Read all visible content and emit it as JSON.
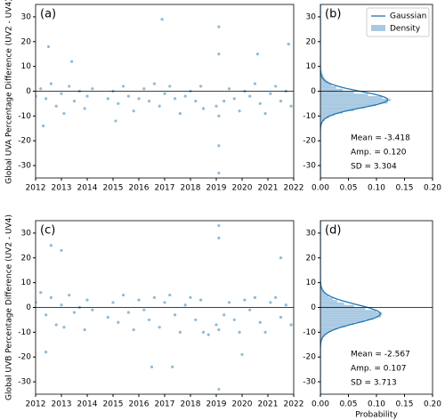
{
  "chart_data": [
    {
      "type": "scatter",
      "label": "(a)",
      "ylabel": "Global UVA Percentage Difference (UV2 - UV4)",
      "color": "#1f77b4",
      "hline": 0,
      "xlim": [
        2012,
        2022
      ],
      "xticks": [
        2012,
        2013,
        2014,
        2015,
        2016,
        2017,
        2018,
        2019,
        2020,
        2021,
        2022
      ],
      "ylim": [
        -35,
        35
      ],
      "yticks": [
        -30,
        -20,
        -10,
        0,
        10,
        20,
        30
      ],
      "x": [
        2012.0,
        2012.2,
        2012.4,
        2012.6,
        2012.8,
        2013.0,
        2013.1,
        2013.3,
        2013.5,
        2013.7,
        2013.9,
        2014.0,
        2014.2,
        2014.8,
        2015.0,
        2015.2,
        2015.4,
        2015.6,
        2015.8,
        2016.0,
        2016.2,
        2016.4,
        2016.6,
        2016.8,
        2017.0,
        2017.2,
        2017.4,
        2017.6,
        2017.8,
        2018.0,
        2018.2,
        2018.4,
        2018.5,
        2019.0,
        2019.1,
        2019.1,
        2019.1,
        2019.1,
        2019.1,
        2019.3,
        2019.5,
        2019.7,
        2019.9,
        2020.1,
        2020.3,
        2020.5,
        2020.7,
        2020.9,
        2021.1,
        2021.3,
        2021.5,
        2021.7,
        2021.9,
        2012.5,
        2016.9,
        2013.4,
        2020.6,
        2021.8,
        2012.3,
        2015.1
      ],
      "y": [
        -2,
        1,
        -3,
        3,
        -6,
        -1,
        -9,
        2,
        -4,
        0,
        -7,
        -2,
        1,
        -3,
        0,
        -5,
        2,
        -2,
        -8,
        -3,
        1,
        -4,
        3,
        -6,
        -1,
        2,
        -3,
        -9,
        -2,
        0,
        -4,
        2,
        -7,
        -6,
        -10,
        26,
        -33,
        -22,
        15,
        -4,
        1,
        -3,
        -8,
        0,
        -2,
        3,
        -5,
        -9,
        -1,
        2,
        -4,
        0,
        -6,
        18,
        29,
        12,
        15,
        19,
        -14,
        -12
      ]
    },
    {
      "type": "histogram",
      "label": "(b)",
      "color": "#a9c9e2",
      "curve_color": "#1f77b4",
      "hline": 0,
      "xlim": [
        0,
        0.2
      ],
      "xticks": [
        {
          "value": 0,
          "label": "0.00"
        },
        {
          "value": 0.05,
          "label": "0.05"
        },
        {
          "value": 0.1,
          "label": "0.10"
        },
        {
          "value": 0.15,
          "label": "0.15"
        },
        {
          "value": 0.2,
          "label": "0.20"
        }
      ],
      "ylim": [
        -35,
        35
      ],
      "yticks": [
        -30,
        -20,
        -10,
        0,
        10,
        20,
        30
      ],
      "bins": [
        -15,
        -14,
        -13,
        -12,
        -11,
        -10,
        -9,
        -8,
        -7,
        -6,
        -5,
        -4,
        -3,
        -2,
        -1,
        0,
        1,
        2,
        3,
        4,
        5,
        6,
        7,
        8,
        9,
        10
      ],
      "values": [
        0.001,
        0.002,
        0.004,
        0.008,
        0.015,
        0.025,
        0.04,
        0.06,
        0.08,
        0.1,
        0.12,
        0.125,
        0.11,
        0.085,
        0.06,
        0.04,
        0.028,
        0.02,
        0.014,
        0.01,
        0.007,
        0.005,
        0.003,
        0.002,
        0.001
      ],
      "gaussian": {
        "mean": {
          "value": -3.418,
          "label": "Mean = -3.418"
        },
        "amp": {
          "value": 0.12,
          "label": "Amp. = 0.120"
        },
        "sd": {
          "value": 3.304,
          "label": "SD = 3.304"
        }
      },
      "curve_name": "Gaussian",
      "bar_name": "Density",
      "legend": "upper right"
    },
    {
      "type": "scatter",
      "label": "(c)",
      "ylabel": "Global UVB Percentage Difference (UV2 - UV4)",
      "color": "#1f77b4",
      "hline": 0,
      "xlim": [
        2012,
        2022
      ],
      "xticks": [
        2012,
        2013,
        2014,
        2015,
        2016,
        2017,
        2018,
        2019,
        2020,
        2021,
        2022
      ],
      "ylim": [
        -35,
        35
      ],
      "yticks": [
        -30,
        -20,
        -10,
        0,
        10,
        20,
        30
      ],
      "x": [
        2012.0,
        2012.2,
        2012.4,
        2012.6,
        2012.8,
        2013.0,
        2013.1,
        2013.3,
        2013.5,
        2013.7,
        2013.9,
        2014.0,
        2014.2,
        2014.8,
        2015.0,
        2015.2,
        2015.4,
        2015.6,
        2015.8,
        2016.0,
        2016.2,
        2016.4,
        2016.6,
        2016.8,
        2017.0,
        2017.2,
        2017.4,
        2017.6,
        2017.8,
        2018.0,
        2018.2,
        2018.4,
        2018.5,
        2019.0,
        2019.1,
        2019.1,
        2019.1,
        2019.1,
        2019.3,
        2019.5,
        2019.7,
        2019.9,
        2020.1,
        2020.3,
        2020.5,
        2020.7,
        2020.9,
        2021.1,
        2021.3,
        2021.5,
        2021.7,
        2021.9,
        2012.6,
        2016.5,
        2013.0,
        2021.5,
        2012.4,
        2020.0,
        2017.3,
        2018.7
      ],
      "y": [
        2,
        6,
        -3,
        4,
        -7,
        1,
        -8,
        5,
        -2,
        0,
        -9,
        3,
        -1,
        -4,
        2,
        -6,
        5,
        -2,
        -9,
        3,
        -1,
        -5,
        4,
        -8,
        2,
        5,
        -3,
        -10,
        1,
        4,
        -5,
        3,
        -10,
        -7,
        -9,
        33,
        -33,
        28,
        -3,
        2,
        -5,
        -10,
        3,
        -1,
        4,
        -6,
        -10,
        2,
        4,
        -4,
        1,
        -7,
        25,
        -24,
        23,
        20,
        -18,
        -19,
        -24,
        -11
      ]
    },
    {
      "type": "histogram",
      "label": "(d)",
      "xlabel": "Probability",
      "color": "#a9c9e2",
      "curve_color": "#1f77b4",
      "hline": 0,
      "xlim": [
        0,
        0.2
      ],
      "xticks": [
        {
          "value": 0,
          "label": "0.00"
        },
        {
          "value": 0.05,
          "label": "0.05"
        },
        {
          "value": 0.1,
          "label": "0.10"
        },
        {
          "value": 0.15,
          "label": "0.15"
        },
        {
          "value": 0.2,
          "label": "0.20"
        }
      ],
      "ylim": [
        -35,
        35
      ],
      "yticks": [
        -30,
        -20,
        -10,
        0,
        10,
        20,
        30
      ],
      "bins": [
        -15,
        -14,
        -13,
        -12,
        -11,
        -10,
        -9,
        -8,
        -7,
        -6,
        -5,
        -4,
        -3,
        -2,
        -1,
        0,
        1,
        2,
        3,
        4,
        5,
        6,
        7,
        8,
        9,
        10
      ],
      "values": [
        0.001,
        0.002,
        0.004,
        0.007,
        0.012,
        0.02,
        0.03,
        0.045,
        0.06,
        0.078,
        0.095,
        0.108,
        0.11,
        0.1,
        0.08,
        0.06,
        0.042,
        0.03,
        0.022,
        0.015,
        0.01,
        0.007,
        0.004,
        0.002,
        0.001
      ],
      "gaussian": {
        "mean": {
          "value": -2.567,
          "label": "Mean = -2.567"
        },
        "amp": {
          "value": 0.107,
          "label": "Amp. = 0.107"
        },
        "sd": {
          "value": 3.713,
          "label": "SD = 3.713"
        }
      }
    }
  ]
}
